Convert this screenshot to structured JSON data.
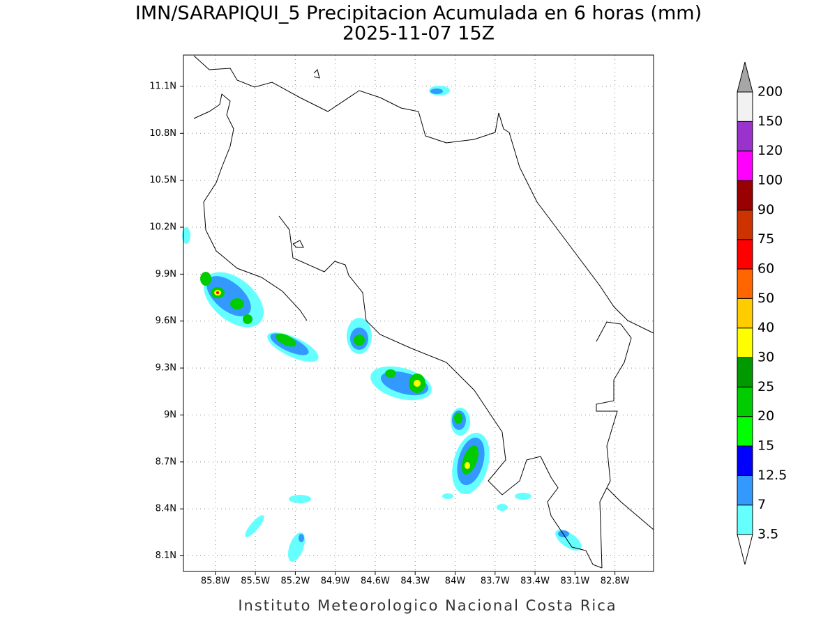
{
  "title": "IMN/SARAPIQUI_5 Precipitacion Acumulada en 6 horas (mm)",
  "subtitle": "2025-11-07 15Z",
  "footer": "Instituto Meteorologico Nacional Costa Rica",
  "map": {
    "lonlim": [
      -86.04,
      -82.51
    ],
    "latlim": [
      8.0,
      11.3
    ],
    "grid": true,
    "lonticks": [
      {
        "value": -85.8,
        "label": "85.8W"
      },
      {
        "value": -85.5,
        "label": "85.5W"
      },
      {
        "value": -85.2,
        "label": "85.2W"
      },
      {
        "value": -84.9,
        "label": "84.9W"
      },
      {
        "value": -84.6,
        "label": "84.6W"
      },
      {
        "value": -84.3,
        "label": "84.3W"
      },
      {
        "value": -84.0,
        "label": "84W"
      },
      {
        "value": -83.7,
        "label": "83.7W"
      },
      {
        "value": -83.4,
        "label": "83.4W"
      },
      {
        "value": -83.1,
        "label": "83.1W"
      },
      {
        "value": -82.8,
        "label": "82.8W"
      }
    ],
    "latticks": [
      {
        "value": 8.1,
        "label": "8.1N"
      },
      {
        "value": 8.4,
        "label": "8.4N"
      },
      {
        "value": 8.7,
        "label": "8.7N"
      },
      {
        "value": 9.0,
        "label": "9N"
      },
      {
        "value": 9.3,
        "label": "9.3N"
      },
      {
        "value": 9.6,
        "label": "9.6N"
      },
      {
        "value": 9.9,
        "label": "9.9N"
      },
      {
        "value": 10.2,
        "label": "10.2N"
      },
      {
        "value": 10.5,
        "label": "10.5N"
      },
      {
        "value": 10.8,
        "label": "10.8N"
      },
      {
        "value": 11.1,
        "label": "11.1N"
      }
    ]
  },
  "colorbar": {
    "levels": [
      3.5,
      7,
      12.5,
      15,
      20,
      25,
      30,
      40,
      50,
      60,
      75,
      90,
      100,
      120,
      150,
      200
    ],
    "colors": [
      "#66ffff",
      "#3399ff",
      "#0000ff",
      "#00ff00",
      "#00cc00",
      "#009900",
      "#ffff00",
      "#ffcc00",
      "#ff6600",
      "#ff0000",
      "#cc3300",
      "#990000",
      "#ff00ff",
      "#9933cc",
      "#f2f2f2"
    ],
    "under_color": "#ffffff",
    "over_color": "#a6a6a6"
  }
}
